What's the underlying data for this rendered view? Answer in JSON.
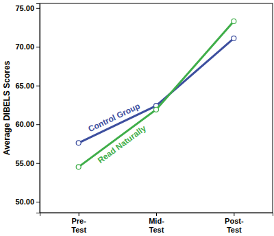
{
  "chart_data": {
    "type": "line",
    "y_label": "Average DIBELS Scores",
    "categories": [
      "Pre-Test",
      "Mid-Test",
      "Post-Test"
    ],
    "series": [
      {
        "name": "Control Group",
        "color": "#3d4f9f",
        "values": [
          57.6,
          62.4,
          71.1
        ]
      },
      {
        "name": "Read Naturally",
        "color": "#3fae49",
        "values": [
          54.5,
          61.9,
          73.3
        ]
      }
    ],
    "marker": "circle",
    "ylim": [
      48.6,
      75.6
    ],
    "yticks": [
      {
        "value": 50,
        "label": "50.00"
      },
      {
        "value": 55,
        "label": "55.00"
      },
      {
        "value": 60,
        "label": "60.00"
      },
      {
        "value": 65,
        "label": "65.00"
      },
      {
        "value": 70,
        "label": "70.00"
      },
      {
        "value": 75,
        "label": "75.00"
      }
    ]
  }
}
